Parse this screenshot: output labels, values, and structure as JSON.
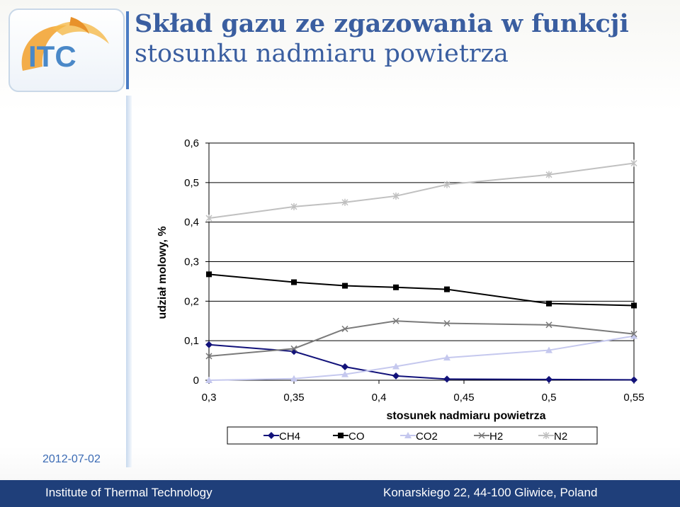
{
  "slide": {
    "title_line1": "Skład gazu ze zgazowania w funkcji",
    "title_line2": "stosunku nadmiaru powietrza",
    "logo_text": "ITC",
    "date": "2012-07-02",
    "footer_left": "Institute of Thermal Technology",
    "footer_right": "Konarskiego 22, 44-100 Gliwice, Poland"
  },
  "colors": {
    "title": "#3a5ea0",
    "footer_bg": "#1f3f7a",
    "logo_orange": "#f2a02a",
    "logo_blue": "#4a88c8"
  },
  "chart_data": {
    "type": "line",
    "title": "",
    "xlabel": "stosunek nadmiaru powietrza",
    "ylabel": "udział molowy, %",
    "x": [
      0.3,
      0.35,
      0.38,
      0.41,
      0.44,
      0.5,
      0.55
    ],
    "xlim": [
      0.3,
      0.55
    ],
    "ylim": [
      0,
      0.6
    ],
    "x_ticks": [
      0.3,
      0.35,
      0.4,
      0.45,
      0.5,
      0.55
    ],
    "x_tick_labels": [
      "0,3",
      "0,35",
      "0,4",
      "0,45",
      "0,5",
      "0,55"
    ],
    "y_ticks": [
      0,
      0.1,
      0.2,
      0.3,
      0.4,
      0.5,
      0.6
    ],
    "y_tick_labels": [
      "0",
      "0,1",
      "0,2",
      "0,3",
      "0,4",
      "0,5",
      "0,6"
    ],
    "grid": "horizontal",
    "legend_position": "bottom",
    "series": [
      {
        "name": "CH4",
        "color": "#12127a",
        "marker": "diamond",
        "values": [
          0.09,
          0.073,
          0.034,
          0.011,
          0.003,
          0.002,
          0.001
        ]
      },
      {
        "name": "CO",
        "color": "#000000",
        "marker": "square",
        "values": [
          0.268,
          0.248,
          0.239,
          0.235,
          0.23,
          0.194,
          0.189
        ]
      },
      {
        "name": "CO2",
        "color": "#c5c8ee",
        "marker": "triangle",
        "values": [
          0.0,
          0.004,
          0.015,
          0.035,
          0.057,
          0.076,
          0.112
        ]
      },
      {
        "name": "H2",
        "color": "#7a7a7a",
        "marker": "x",
        "values": [
          0.061,
          0.08,
          0.13,
          0.15,
          0.144,
          0.14,
          0.117
        ]
      },
      {
        "name": "N2",
        "color": "#c0c0c0",
        "marker": "star",
        "values": [
          0.41,
          0.439,
          0.45,
          0.466,
          0.495,
          0.52,
          0.549
        ]
      }
    ]
  }
}
